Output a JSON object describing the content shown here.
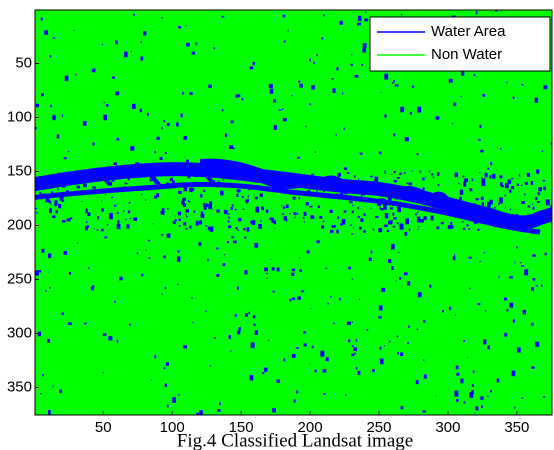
{
  "chart_data": {
    "type": "image",
    "caption": "Fig.4 Classified Landsat image",
    "xlim": [
      0.5,
      375.5
    ],
    "ylim": [
      0.5,
      375.5
    ],
    "xticks": [
      50,
      100,
      150,
      200,
      250,
      300,
      350
    ],
    "yticks": [
      50,
      100,
      150,
      200,
      250,
      300,
      350
    ],
    "background": "#00ff00",
    "legend": "upper right",
    "series": [
      {
        "name": "Water Area",
        "color": "#0000ff"
      },
      {
        "name": "Non Water",
        "color": "#00ff00"
      }
    ]
  }
}
